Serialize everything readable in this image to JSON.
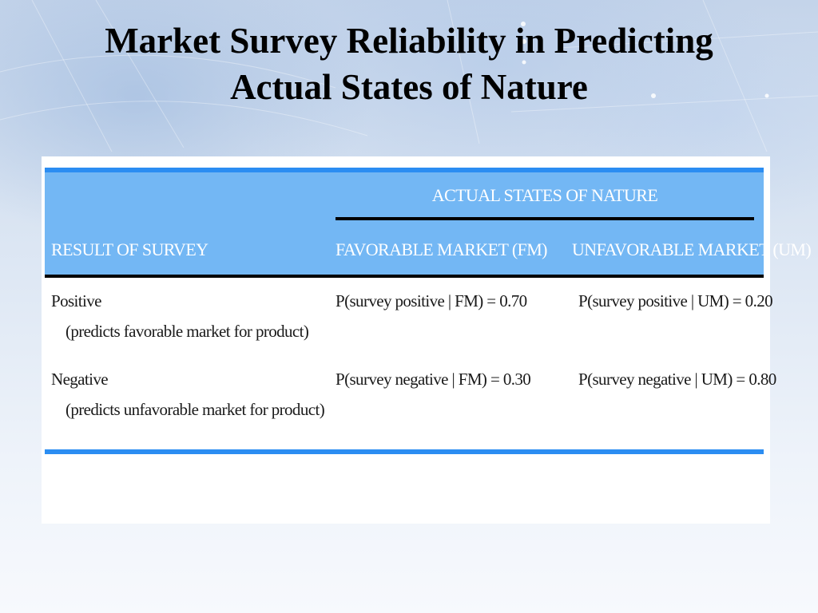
{
  "slide": {
    "title_line1": "Market Survey Reliability in Predicting",
    "title_line2": "Actual States of Nature"
  },
  "table": {
    "group_header": "ACTUAL STATES OF NATURE",
    "columns": [
      "RESULT OF SURVEY",
      "FAVORABLE MARKET (FM)",
      "UNFAVORABLE MARKET (UM)"
    ],
    "rows": [
      {
        "label": "Positive",
        "note": "(predicts favorable market for product)",
        "values": [
          "P(survey positive | FM) = 0.70",
          "P(survey positive | UM) = 0.20"
        ]
      },
      {
        "label": "Negative",
        "note": "(predicts unfavorable market for product)",
        "values": [
          "P(survey negative | FM) = 0.30",
          "P(survey negative | UM) = 0.80"
        ]
      }
    ]
  },
  "colors": {
    "header_band": "#73b7f4",
    "accent_rule": "#2b8df2",
    "header_text": "#ffffff",
    "title_text": "#000000"
  }
}
